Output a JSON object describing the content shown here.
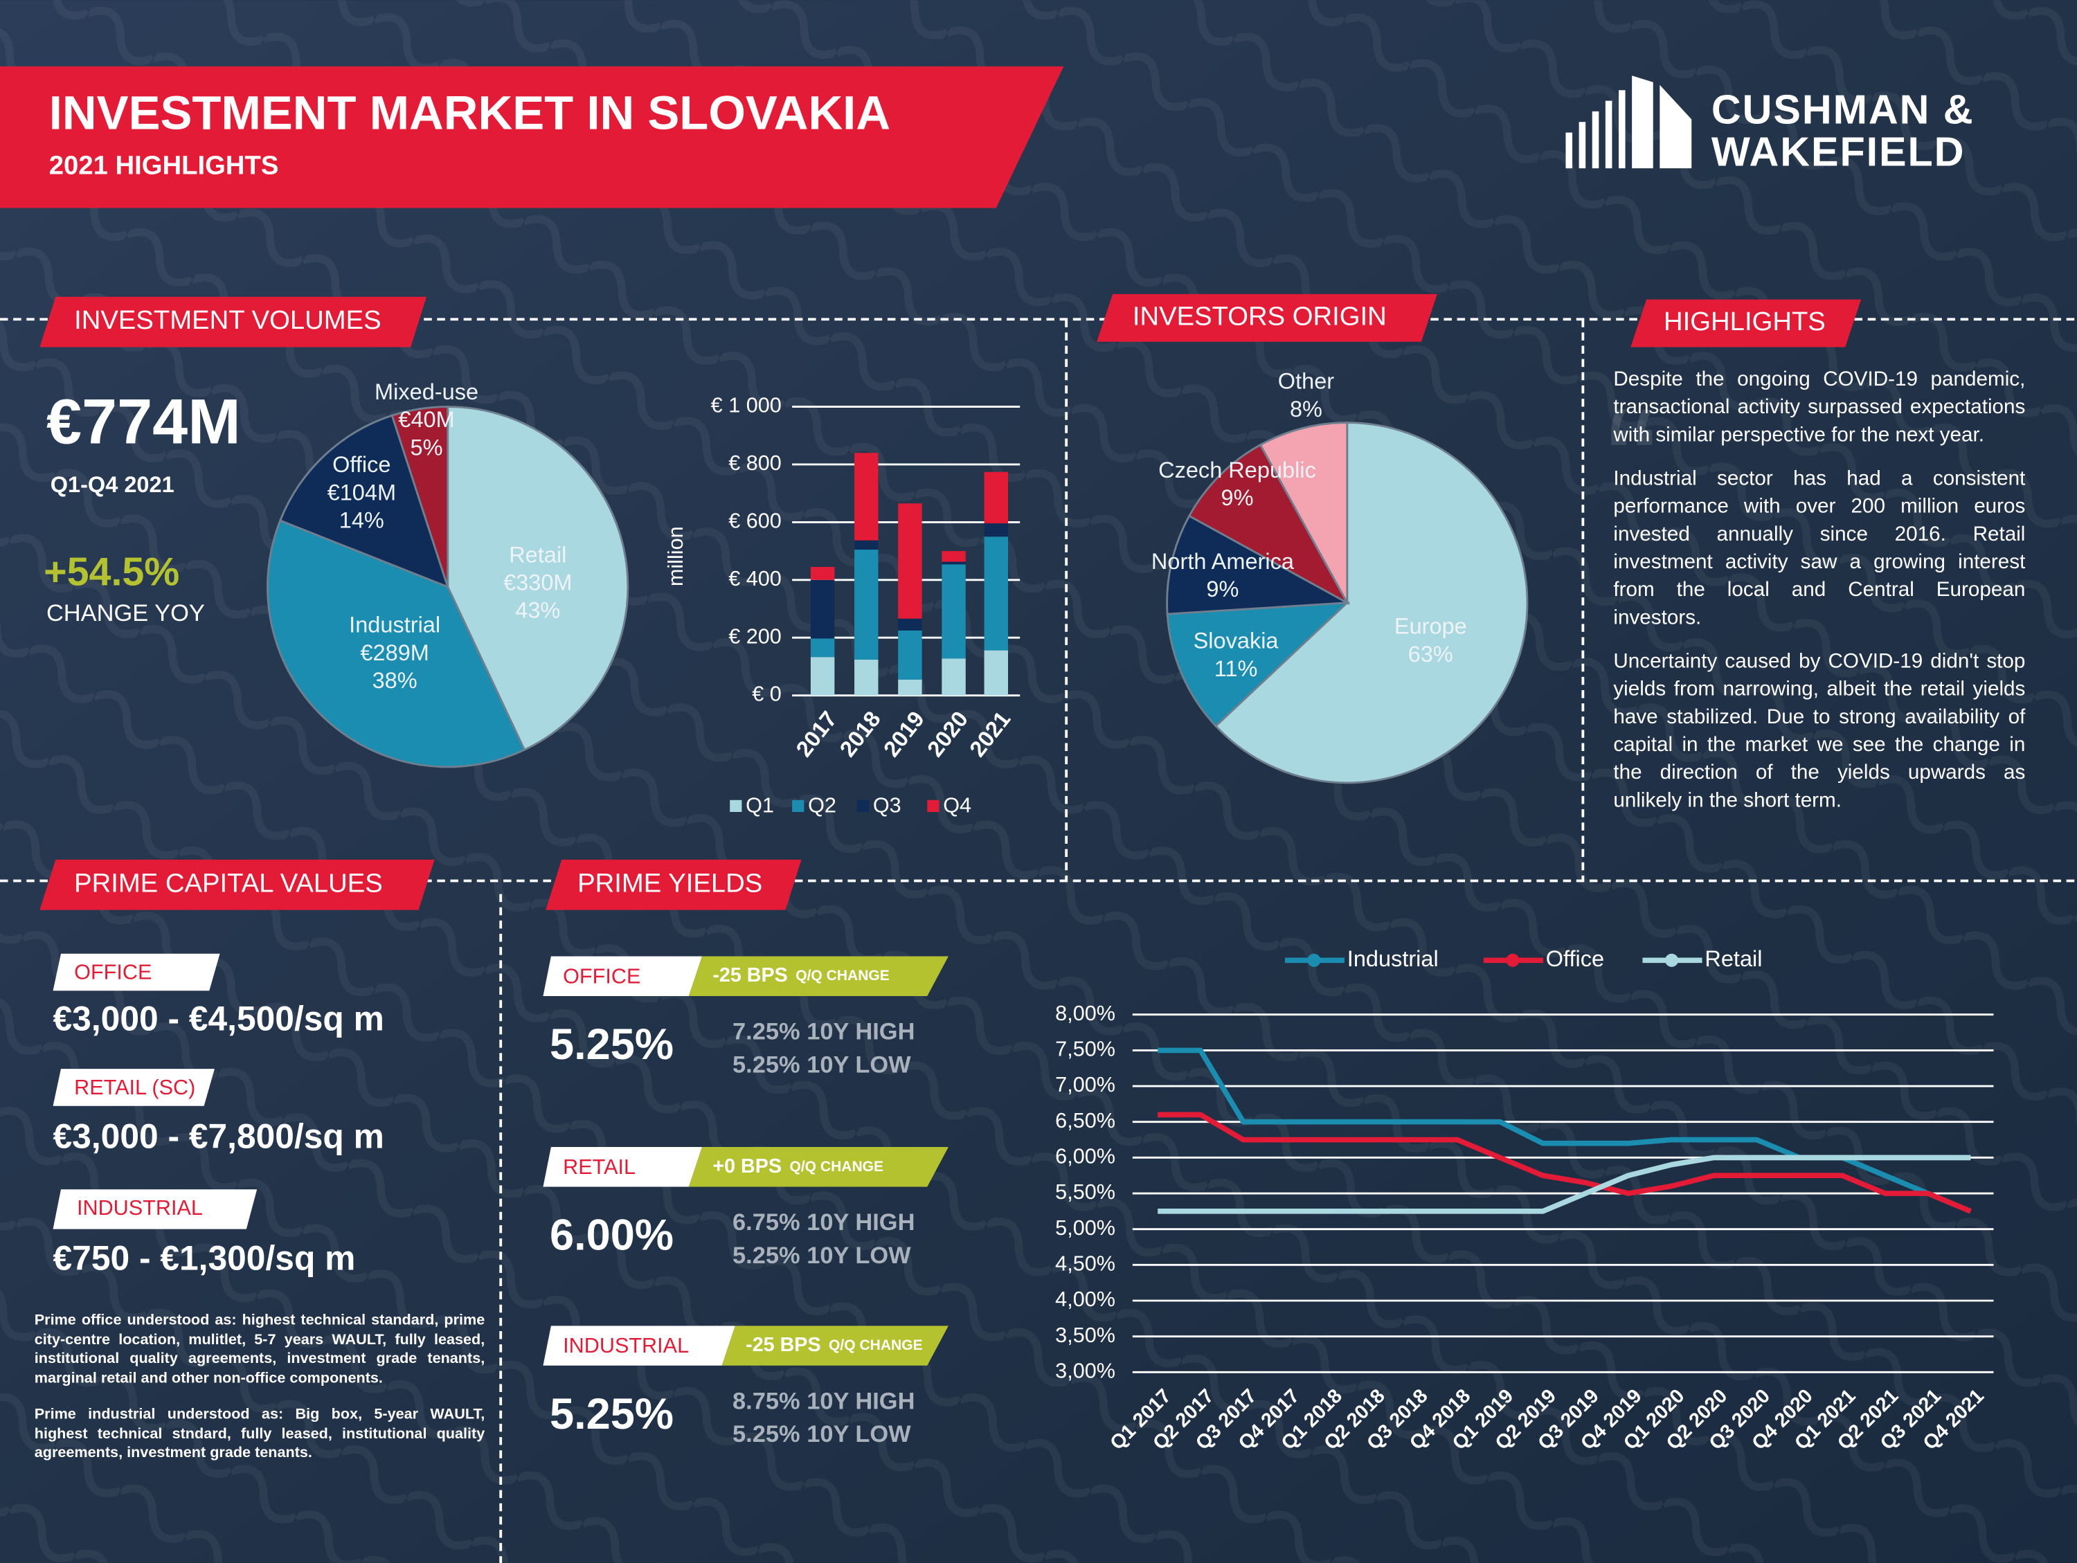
{
  "header": {
    "title": "INVESTMENT MARKET IN SLOVAKIA",
    "subtitle": "2021 HIGHLIGHTS",
    "logo": [
      "CUSHMAN &",
      "WAKEFIELD"
    ]
  },
  "volumes": {
    "heading": "INVESTMENT VOLUMES",
    "total": "€774M",
    "period": "Q1-Q4 2021",
    "change": "+54.5%",
    "change_label": "CHANGE YOY"
  },
  "origin": {
    "heading": "INVESTORS ORIGIN"
  },
  "highlights": {
    "heading": "HIGHLIGHTS",
    "paragraphs": [
      "Despite the ongoing COVID-19 pandemic, transactional activity surpassed expectations with similar perspective for the next year.",
      "Industrial sector has had a consistent performance with over 200 million euros invested annually since 2016. Retail investment activity saw a growing interest from the local and Central European investors.",
      "Uncertainty caused by COVID-19 didn't stop yields from narrowing, albeit the retail yields have stabilized. Due to strong availability of capital in the market we see the change in the direction of the yields upwards as unlikely in the short term."
    ]
  },
  "capital_values": {
    "heading": "PRIME CAPITAL VALUES",
    "items": [
      {
        "sector": "OFFICE",
        "range": "€3,000 - €4,500/sq m"
      },
      {
        "sector": "RETAIL (SC)",
        "range": "€3,000 - €7,800/sq m"
      },
      {
        "sector": "INDUSTRIAL",
        "range": "€750 - €1,300/sq m"
      }
    ],
    "notes": [
      "Prime office understood as: highest technical standard, prime city-centre location, mulitlet, 5-7 years WAULT, fully leased, institutional quality agreements, investment grade tenants, marginal retail and other non-office components.",
      "Prime industrial understood as: Big box, 5-year WAULT, highest technical stndard, fully leased, institutional quality agreements, investment grade tenants."
    ]
  },
  "yields": {
    "heading": "PRIME YIELDS",
    "items": [
      {
        "sector": "OFFICE",
        "change": "-25 BPS",
        "change_unit": "Q/Q CHANGE",
        "yield": "5.25%",
        "high": "7.25% 10Y HIGH",
        "low": "5.25% 10Y LOW"
      },
      {
        "sector": "RETAIL",
        "change": "+0 BPS",
        "change_unit": "Q/Q CHANGE",
        "yield": "6.00%",
        "high": "6.75% 10Y HIGH",
        "low": "5.25% 10Y LOW"
      },
      {
        "sector": "INDUSTRIAL",
        "change": "-25 BPS",
        "change_unit": "Q/Q CHANGE",
        "yield": "5.25%",
        "high": "8.75% 10Y HIGH",
        "low": "5.25% 10Y LOW"
      }
    ]
  },
  "chart_data": [
    {
      "type": "pie",
      "categories": [
        "Retail",
        "Industrial",
        "Office",
        "Mixed-use"
      ],
      "amount_labels": [
        "€330M",
        "€289M",
        "€104M",
        "€40M"
      ],
      "values": [
        43,
        38,
        14,
        5
      ],
      "value_labels": [
        "43%",
        "38%",
        "14%",
        "5%"
      ],
      "colors": [
        "#a9d8e1",
        "#1a8db0",
        "#0e2c57",
        "#a31b30"
      ]
    },
    {
      "type": "bar",
      "stacked": true,
      "categories": [
        "2017",
        "2018",
        "2019",
        "2020",
        "2021"
      ],
      "series": [
        {
          "name": "Q1",
          "color": "#a9d8e1",
          "values": [
            133,
            124,
            55,
            128,
            156
          ]
        },
        {
          "name": "Q2",
          "color": "#1a8db0",
          "values": [
            64,
            381,
            170,
            326,
            394
          ]
        },
        {
          "name": "Q3",
          "color": "#0e2c57",
          "values": [
            203,
            32,
            41,
            9,
            46
          ]
        },
        {
          "name": "Q4",
          "color": "#e31b37",
          "values": [
            45,
            303,
            399,
            37,
            178
          ]
        }
      ],
      "ylim": [
        0,
        1000
      ],
      "yticks": [
        {
          "value": 0,
          "label": "€ 0"
        },
        {
          "value": 200,
          "label": "€ 200"
        },
        {
          "value": 400,
          "label": "€ 400"
        },
        {
          "value": 600,
          "label": "€ 600"
        },
        {
          "value": 800,
          "label": "€ 800"
        },
        {
          "value": 1000,
          "label": "€ 1 000"
        }
      ],
      "ylabel": "million",
      "grid": true,
      "legend": "bottom"
    },
    {
      "type": "pie",
      "categories": [
        "Europe",
        "Slovakia",
        "North America",
        "Czech Republic",
        "Other"
      ],
      "values": [
        63,
        11,
        9,
        9,
        8
      ],
      "value_labels": [
        "63%",
        "11%",
        "9%",
        "9%",
        "8%"
      ],
      "colors": [
        "#a9d8e1",
        "#1a8db0",
        "#0e2c57",
        "#a31b30",
        "#f4a3b1"
      ]
    },
    {
      "type": "line",
      "categories": [
        "Q1 2017",
        "Q2 2017",
        "Q3 2017",
        "Q4 2017",
        "Q1 2018",
        "Q2 2018",
        "Q3 2018",
        "Q4 2018",
        "Q1 2019",
        "Q2 2019",
        "Q3 2019",
        "Q4 2019",
        "Q1 2020",
        "Q2 2020",
        "Q3 2020",
        "Q4 2020",
        "Q1 2021",
        "Q2 2021",
        "Q3 2021",
        "Q4 2021"
      ],
      "series": [
        {
          "name": "Industrial",
          "color": "#1a8db0",
          "values": [
            7.5,
            7.5,
            6.5,
            6.5,
            6.5,
            6.5,
            6.5,
            6.5,
            6.5,
            6.2,
            6.2,
            6.2,
            6.25,
            6.25,
            6.25,
            6.0,
            6.0,
            5.75,
            5.5,
            5.25
          ]
        },
        {
          "name": "Office",
          "color": "#e31b37",
          "values": [
            6.6,
            6.6,
            6.25,
            6.25,
            6.25,
            6.25,
            6.25,
            6.25,
            6.0,
            5.75,
            5.65,
            5.5,
            5.6,
            5.75,
            5.75,
            5.75,
            5.75,
            5.5,
            5.5,
            5.25
          ]
        },
        {
          "name": "Retail",
          "color": "#a9d8e1",
          "values": [
            5.25,
            5.25,
            5.25,
            5.25,
            5.25,
            5.25,
            5.25,
            5.25,
            5.25,
            5.25,
            5.5,
            5.75,
            5.9,
            6.0,
            6.0,
            6.0,
            6.0,
            6.0,
            6.0,
            6.0
          ]
        }
      ],
      "ylim": [
        3,
        8
      ],
      "yticks": [
        {
          "value": 3,
          "label": "3,00%"
        },
        {
          "value": 3.5,
          "label": "3,50%"
        },
        {
          "value": 4,
          "label": "4,00%"
        },
        {
          "value": 4.5,
          "label": "4,50%"
        },
        {
          "value": 5,
          "label": "5,00%"
        },
        {
          "value": 5.5,
          "label": "5,50%"
        },
        {
          "value": 6,
          "label": "6,00%"
        },
        {
          "value": 6.5,
          "label": "6,50%"
        },
        {
          "value": 7,
          "label": "7,00%"
        },
        {
          "value": 7.5,
          "label": "7,50%"
        },
        {
          "value": 8,
          "label": "8,00%"
        }
      ],
      "grid": true,
      "legend": "top"
    }
  ]
}
